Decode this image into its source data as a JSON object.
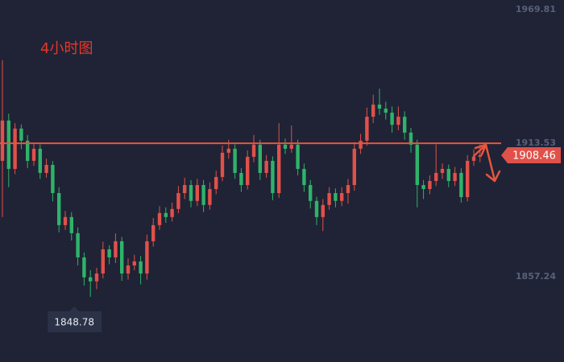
{
  "chart_data": {
    "type": "candlestick",
    "title": "4小时图",
    "open": [
      1906.1,
      1923.1,
      1902.7,
      1919.7,
      1914.6,
      1906.1,
      1911.2,
      1901.0,
      1904.4,
      1892.5,
      1879.0,
      1882.4,
      1875.6,
      1865.4,
      1857.0,
      1855.3,
      1858.6,
      1868.8,
      1865.4,
      1872.2,
      1858.6,
      1862.0,
      1863.7,
      1858.6,
      1872.2,
      1879.0,
      1884.1,
      1882.4,
      1885.8,
      1892.5,
      1895.9,
      1889.2,
      1895.9,
      1887.5,
      1894.2,
      1899.3,
      1909.5,
      1911.2,
      1901.0,
      1895.9,
      1907.8,
      1912.9,
      1901.0,
      1906.1,
      1892.5,
      1912.9,
      1911.2,
      1912.9,
      1902.7,
      1895.9,
      1889.2,
      1882.4,
      1887.5,
      1892.5,
      1889.2,
      1892.5,
      1895.9,
      1911.2,
      1914.6,
      1924.7,
      1929.8,
      1928.1,
      1926.4,
      1921.3,
      1924.7,
      1918.0,
      1912.9,
      1895.9,
      1894.2,
      1897.6,
      1901.0,
      1902.7,
      1897.6,
      1901.0,
      1890.8,
      1906.1,
      1907.8
    ],
    "high": [
      1948.5,
      1926.0,
      1922.0,
      1921.5,
      1917.0,
      1913.5,
      1913.0,
      1907.0,
      1906.0,
      1895.0,
      1885.0,
      1884.5,
      1878.0,
      1867.5,
      1860.0,
      1861.0,
      1872.0,
      1870.5,
      1875.5,
      1874.0,
      1865.0,
      1866.5,
      1866.0,
      1875.0,
      1882.0,
      1887.0,
      1886.5,
      1888.5,
      1895.5,
      1899.0,
      1898.0,
      1898.5,
      1898.0,
      1897.0,
      1902.0,
      1912.5,
      1915.0,
      1913.0,
      1903.0,
      1910.5,
      1917.0,
      1915.0,
      1908.5,
      1908.0,
      1922.0,
      1915.5,
      1921.0,
      1915.0,
      1905.0,
      1898.0,
      1891.0,
      1890.0,
      1895.0,
      1894.5,
      1895.0,
      1898.5,
      1914.0,
      1917.5,
      1928.5,
      1934.0,
      1936.5,
      1931.0,
      1929.0,
      1929.0,
      1927.0,
      1920.0,
      1915.0,
      1898.0,
      1900.0,
      1913.0,
      1905.0,
      1904.5,
      1903.5,
      1903.0,
      1908.5,
      1911.0,
      1913.0
    ],
    "low": [
      1882.4,
      1895.0,
      1900.5,
      1911.0,
      1903.0,
      1904.0,
      1898.5,
      1899.0,
      1889.0,
      1876.0,
      1877.0,
      1872.5,
      1862.0,
      1853.5,
      1848.78,
      1852.0,
      1856.5,
      1862.5,
      1863.0,
      1855.5,
      1856.0,
      1860.0,
      1854.0,
      1856.0,
      1870.0,
      1877.0,
      1880.0,
      1880.5,
      1884.0,
      1890.0,
      1886.5,
      1887.0,
      1884.5,
      1885.5,
      1892.0,
      1897.5,
      1907.0,
      1898.5,
      1893.0,
      1894.0,
      1905.5,
      1898.0,
      1899.0,
      1889.5,
      1890.5,
      1909.0,
      1909.5,
      1900.0,
      1893.0,
      1886.0,
      1879.0,
      1876.5,
      1885.5,
      1886.5,
      1887.0,
      1888.0,
      1893.5,
      1909.0,
      1912.5,
      1922.0,
      1925.5,
      1923.5,
      1918.0,
      1919.0,
      1915.0,
      1909.5,
      1886.5,
      1890.0,
      1892.0,
      1895.5,
      1898.5,
      1895.0,
      1895.5,
      1888.5,
      1889.0,
      1904.0,
      1905.5
    ],
    "close": [
      1923.1,
      1902.7,
      1919.7,
      1914.6,
      1906.1,
      1911.2,
      1901.0,
      1904.4,
      1892.5,
      1879.0,
      1882.4,
      1875.6,
      1865.4,
      1857.0,
      1855.3,
      1858.6,
      1868.8,
      1865.4,
      1872.2,
      1858.6,
      1862.0,
      1863.7,
      1858.6,
      1872.2,
      1879.0,
      1884.1,
      1882.4,
      1885.8,
      1892.5,
      1895.9,
      1889.2,
      1895.9,
      1887.5,
      1894.2,
      1899.3,
      1909.5,
      1911.2,
      1901.0,
      1895.9,
      1907.8,
      1912.9,
      1901.0,
      1906.1,
      1892.5,
      1912.9,
      1911.2,
      1912.9,
      1902.7,
      1895.9,
      1889.2,
      1882.4,
      1887.5,
      1892.5,
      1889.2,
      1892.5,
      1895.9,
      1911.2,
      1914.6,
      1924.7,
      1929.8,
      1928.1,
      1926.4,
      1921.3,
      1924.7,
      1918.0,
      1912.9,
      1895.9,
      1894.2,
      1897.6,
      1901.0,
      1902.7,
      1897.6,
      1901.0,
      1890.8,
      1906.1,
      1907.8,
      1908.46
    ],
    "up_color": "#e0514a",
    "down_color": "#2fb36a",
    "ylim": [
      1821.3,
      1973.9
    ],
    "yticks": [
      1969.81,
      1913.53,
      1857.24
    ],
    "horizontal_line": 1913.5,
    "line_color": "#e8553e",
    "low_label_index": 14
  }
}
